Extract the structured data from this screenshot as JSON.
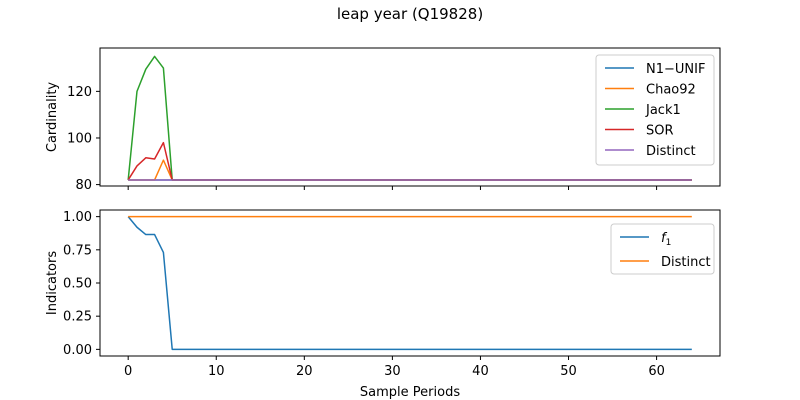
{
  "figure": {
    "title": "leap year (Q19828)"
  },
  "chart_data": [
    {
      "type": "line",
      "ylabel": "Cardinality",
      "xlabel": "",
      "xlim": [
        -3.2,
        67.2
      ],
      "ylim": [
        79.4,
        138.6
      ],
      "xticks": [
        0,
        10,
        20,
        30,
        40,
        50,
        60
      ],
      "yticks": [
        80,
        100,
        120
      ],
      "show_xtick_labels": false,
      "legend": "top-right",
      "series": [
        {
          "name": "N1−UNIF",
          "color": "#1f77b4",
          "points": [
            [
              0,
              82
            ],
            [
              64,
              82
            ]
          ]
        },
        {
          "name": "Chao92",
          "color": "#ff7f0e",
          "points": [
            [
              0,
              82
            ],
            [
              1,
              82
            ],
            [
              2,
              82
            ],
            [
              3,
              82
            ],
            [
              4,
              90.5
            ],
            [
              5,
              82
            ],
            [
              64,
              82
            ]
          ]
        },
        {
          "name": "Jack1",
          "color": "#2ca02c",
          "points": [
            [
              0,
              82
            ],
            [
              1,
              120
            ],
            [
              2,
              129.5
            ],
            [
              3,
              135
            ],
            [
              4,
              130
            ],
            [
              5,
              82
            ],
            [
              64,
              82
            ]
          ]
        },
        {
          "name": "SOR",
          "color": "#d62728",
          "points": [
            [
              0,
              82
            ],
            [
              1,
              88
            ],
            [
              2,
              91.5
            ],
            [
              3,
              91
            ],
            [
              4,
              98
            ],
            [
              5,
              82
            ],
            [
              64,
              82
            ]
          ]
        },
        {
          "name": "Distinct",
          "color": "#9467bd",
          "points": [
            [
              0,
              82
            ],
            [
              64,
              82
            ]
          ]
        }
      ]
    },
    {
      "type": "line",
      "ylabel": "Indicators",
      "xlabel": "Sample Periods",
      "xlim": [
        -3.2,
        67.2
      ],
      "ylim": [
        -0.05,
        1.05
      ],
      "xticks": [
        0,
        10,
        20,
        30,
        40,
        50,
        60
      ],
      "yticks": [
        0.0,
        0.25,
        0.5,
        0.75,
        1.0
      ],
      "ytick_labels": [
        "0.00",
        "0.25",
        "0.50",
        "0.75",
        "1.00"
      ],
      "show_xtick_labels": true,
      "legend": "top-right",
      "series": [
        {
          "name": "f1",
          "color": "#1f77b4",
          "points": [
            [
              0,
              1.0
            ],
            [
              1,
              0.92
            ],
            [
              2,
              0.865
            ],
            [
              3,
              0.865
            ],
            [
              4,
              0.73
            ],
            [
              5,
              0.0
            ],
            [
              64,
              0.0
            ]
          ]
        },
        {
          "name": "Distinct",
          "color": "#ff7f0e",
          "points": [
            [
              0,
              1.0
            ],
            [
              64,
              1.0
            ]
          ]
        }
      ]
    }
  ]
}
